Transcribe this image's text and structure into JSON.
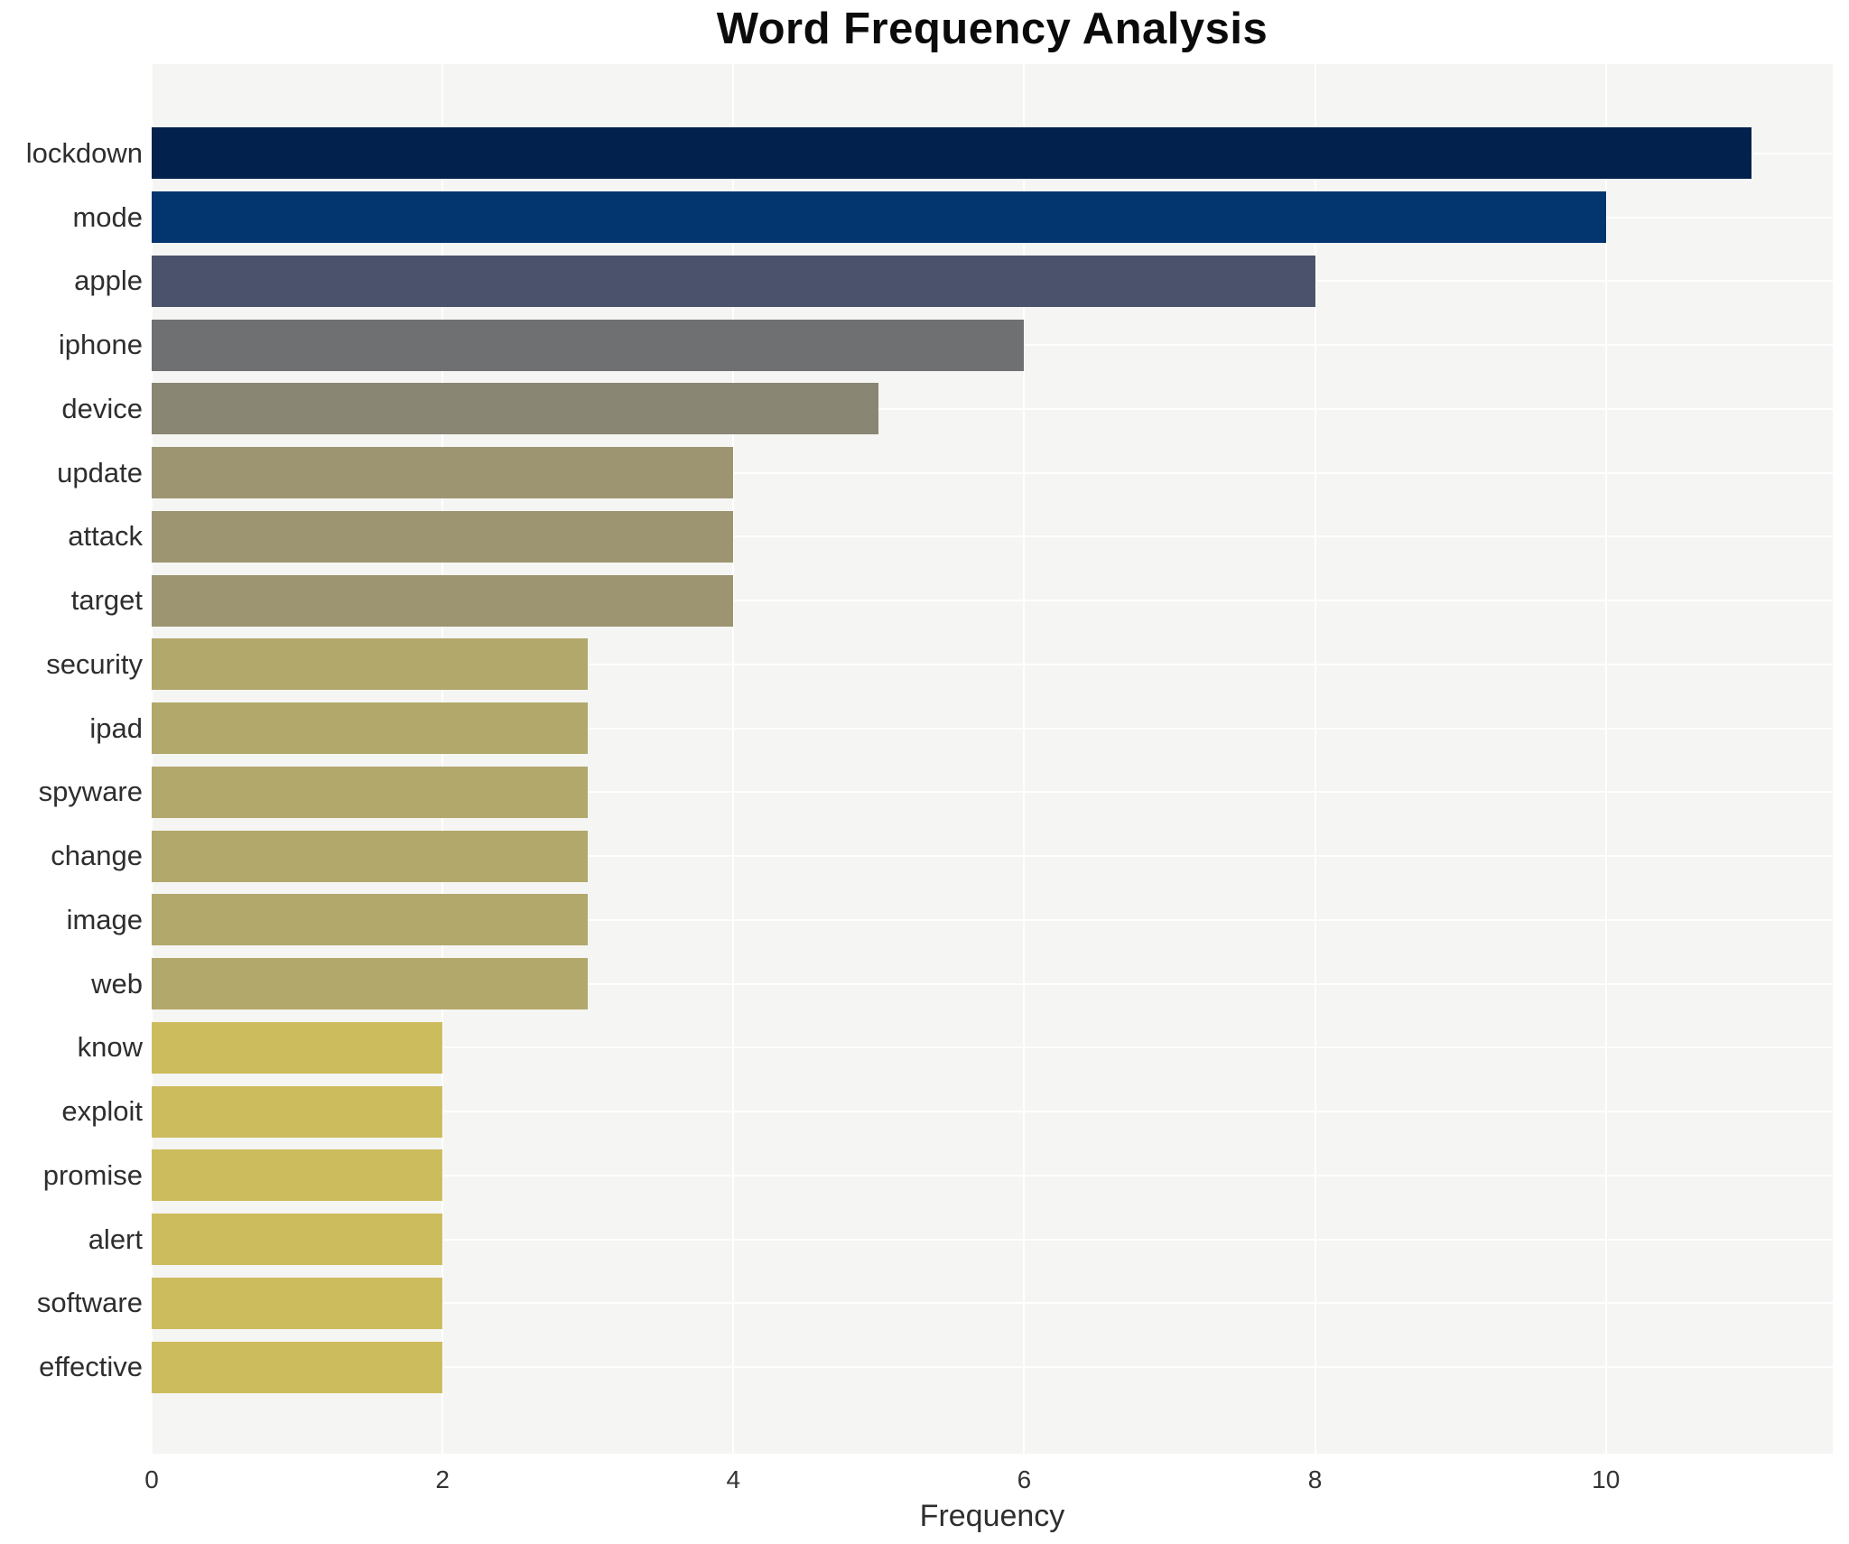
{
  "chart_data": {
    "type": "bar",
    "orientation": "horizontal",
    "title": "Word Frequency Analysis",
    "xlabel": "Frequency",
    "ylabel": "",
    "categories": [
      "lockdown",
      "mode",
      "apple",
      "iphone",
      "device",
      "update",
      "attack",
      "target",
      "security",
      "ipad",
      "spyware",
      "change",
      "image",
      "web",
      "know",
      "exploit",
      "promise",
      "alert",
      "software",
      "effective"
    ],
    "values": [
      11,
      10,
      8,
      6,
      5,
      4,
      4,
      4,
      3,
      3,
      3,
      3,
      3,
      3,
      2,
      2,
      2,
      2,
      2,
      2
    ],
    "bar_colors": [
      "#02214d",
      "#03356e",
      "#4a536b",
      "#6f7072",
      "#8a8674",
      "#9d9572",
      "#9d9572",
      "#9d9572",
      "#b2a86c",
      "#b2a86c",
      "#b2a86c",
      "#b2a86c",
      "#b2a86c",
      "#b2a86c",
      "#cdbc5e",
      "#cdbc5e",
      "#cdbc5e",
      "#cdbc5e",
      "#cdbc5e",
      "#cdbc5e"
    ],
    "x_ticks": [
      0,
      2,
      4,
      6,
      8,
      10
    ],
    "xlim": [
      0,
      11.56
    ],
    "grid": true,
    "legend_visible": false,
    "plot_bg_color": "#f5f5f3",
    "grid_color": "#ffffff",
    "title_color": "#0b0b0b",
    "tick_label_color": "#333333",
    "category_label_color": "#2e2e2e"
  }
}
